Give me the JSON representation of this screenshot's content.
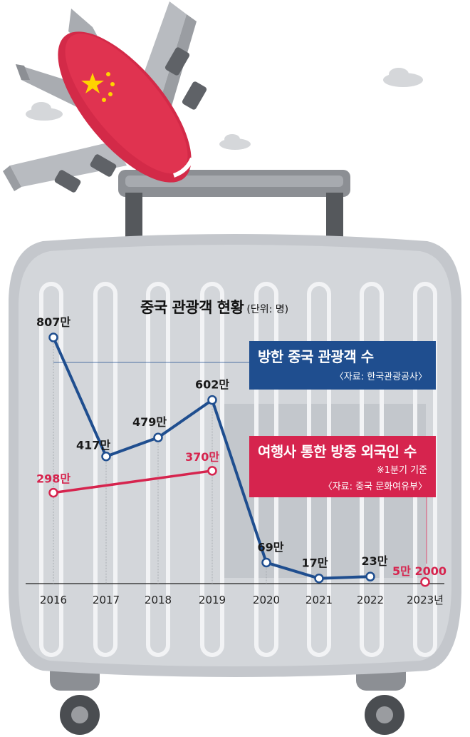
{
  "chart_data": {
    "type": "line",
    "title": "중국 관광객 현황",
    "unit_note": "(단위: 명)",
    "categories": [
      "2016",
      "2017",
      "2018",
      "2019",
      "2020",
      "2021",
      "2022",
      "2023년"
    ],
    "ylim": [
      0,
      850
    ],
    "grid": false,
    "series": [
      {
        "name": "방한 중국 관광객 수",
        "source": "〈자료: 한국관광공사〉",
        "color": "#1f4e8f",
        "values": [
          807,
          417,
          479,
          602,
          69,
          17,
          23,
          null
        ],
        "labels": [
          "807만",
          "417만",
          "479만",
          "602만",
          "69만",
          "17만",
          "23만",
          ""
        ]
      },
      {
        "name": "여행사 통한 방중 외국인 수",
        "note": "※1분기 기준",
        "source": "〈자료: 중국 문화여유부〉",
        "color": "#d6244e",
        "values": [
          298,
          null,
          null,
          370,
          null,
          null,
          null,
          5.2
        ],
        "labels": [
          "298만",
          "",
          "",
          "370만",
          "",
          "",
          "",
          "5만 2000"
        ]
      }
    ]
  }
}
